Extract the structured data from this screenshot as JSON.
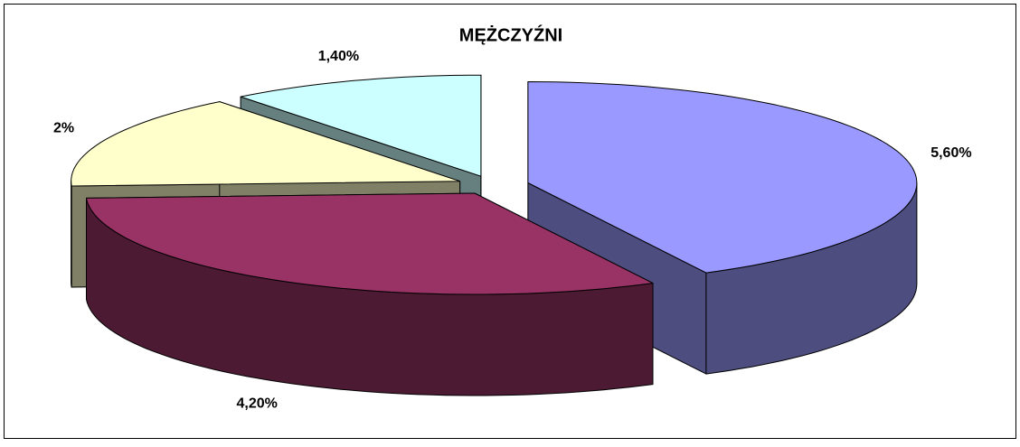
{
  "chart_data": {
    "type": "pie3d",
    "title": "MĘŻCZYŹNI",
    "categories": [
      null,
      null,
      null,
      null
    ],
    "values": [
      5.6,
      4.2,
      2,
      1.4
    ],
    "value_labels": [
      "5,60%",
      "4,20%",
      "2%",
      "1,40%"
    ],
    "colors": [
      "#9999ff",
      "#993366",
      "#ffffcc",
      "#ccffff"
    ]
  }
}
